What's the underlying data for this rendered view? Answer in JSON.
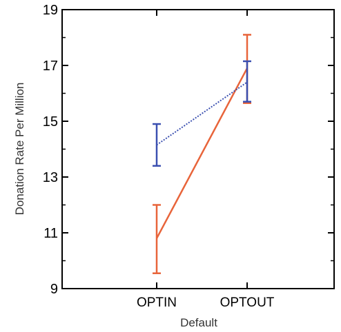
{
  "chart_data": {
    "type": "line",
    "xlabel": "Default",
    "ylabel": "Donation Rate Per Million",
    "categories": [
      "OPTIN",
      "OPTOUT"
    ],
    "ylim": [
      9,
      19
    ],
    "yticks": [
      9,
      11,
      13,
      15,
      17,
      19
    ],
    "grid": false,
    "series": [
      {
        "color": "#e8643a",
        "line_style": "solid",
        "values": [
          10.8,
          16.9
        ],
        "error_low": [
          9.55,
          15.65
        ],
        "error_high": [
          12.0,
          18.1
        ]
      },
      {
        "color": "#3a4fb0",
        "line_style": "dotted",
        "values": [
          14.15,
          16.4
        ],
        "error_low": [
          13.4,
          15.7
        ],
        "error_high": [
          14.9,
          17.15
        ]
      }
    ]
  }
}
